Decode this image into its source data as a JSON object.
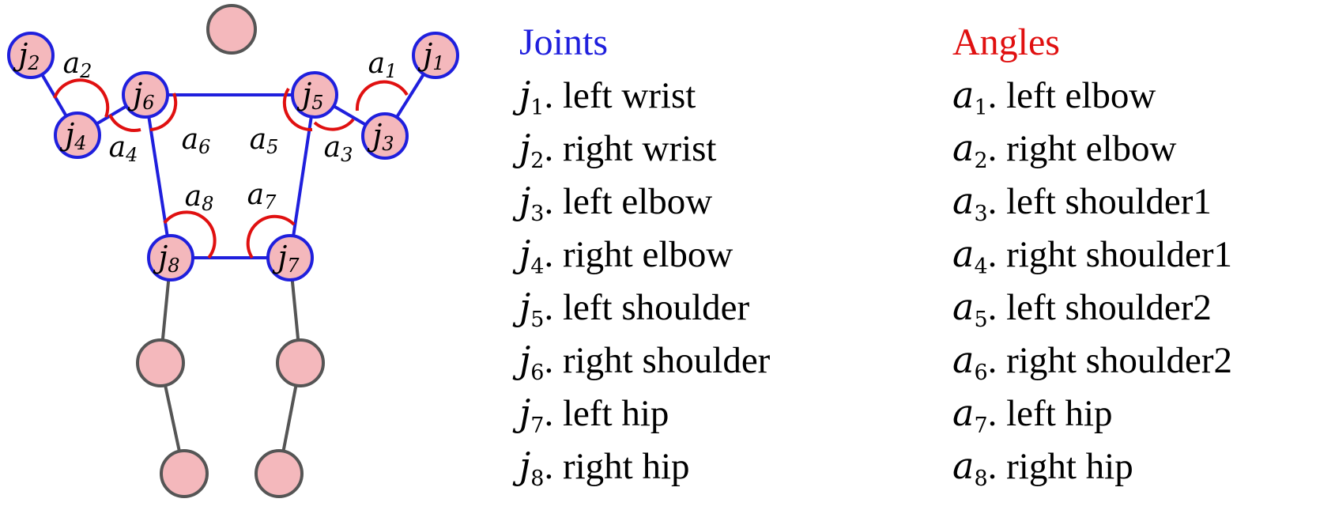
{
  "colors": {
    "joint_stroke": "#1f1fdd",
    "joint_fill": "#f4b8bc",
    "bone_tracked": "#1f1fdd",
    "bone_other": "#555555",
    "angle_arc": "#e01010",
    "other_node_stroke": "#555555"
  },
  "joints_title": "Joints",
  "angles_title": "Angles",
  "joints": [
    {
      "sym": "j",
      "sub": "1",
      "label": "left wrist"
    },
    {
      "sym": "j",
      "sub": "2",
      "label": "right wrist"
    },
    {
      "sym": "j",
      "sub": "3",
      "label": "left elbow"
    },
    {
      "sym": "j",
      "sub": "4",
      "label": "right elbow"
    },
    {
      "sym": "j",
      "sub": "5",
      "label": "left shoulder"
    },
    {
      "sym": "j",
      "sub": "6",
      "label": "right shoulder"
    },
    {
      "sym": "j",
      "sub": "7",
      "label": "left hip"
    },
    {
      "sym": "j",
      "sub": "8",
      "label": "right hip"
    }
  ],
  "angles": [
    {
      "sym": "a",
      "sub": "1",
      "label": "left elbow"
    },
    {
      "sym": "a",
      "sub": "2",
      "label": "right elbow"
    },
    {
      "sym": "a",
      "sub": "3",
      "label": "left shoulder1"
    },
    {
      "sym": "a",
      "sub": "4",
      "label": "right shoulder1"
    },
    {
      "sym": "a",
      "sub": "5",
      "label": "left shoulder2"
    },
    {
      "sym": "a",
      "sub": "6",
      "label": "right shoulder2"
    },
    {
      "sym": "a",
      "sub": "7",
      "label": "left hip"
    },
    {
      "sym": "a",
      "sub": "8",
      "label": "right hip"
    }
  ]
}
